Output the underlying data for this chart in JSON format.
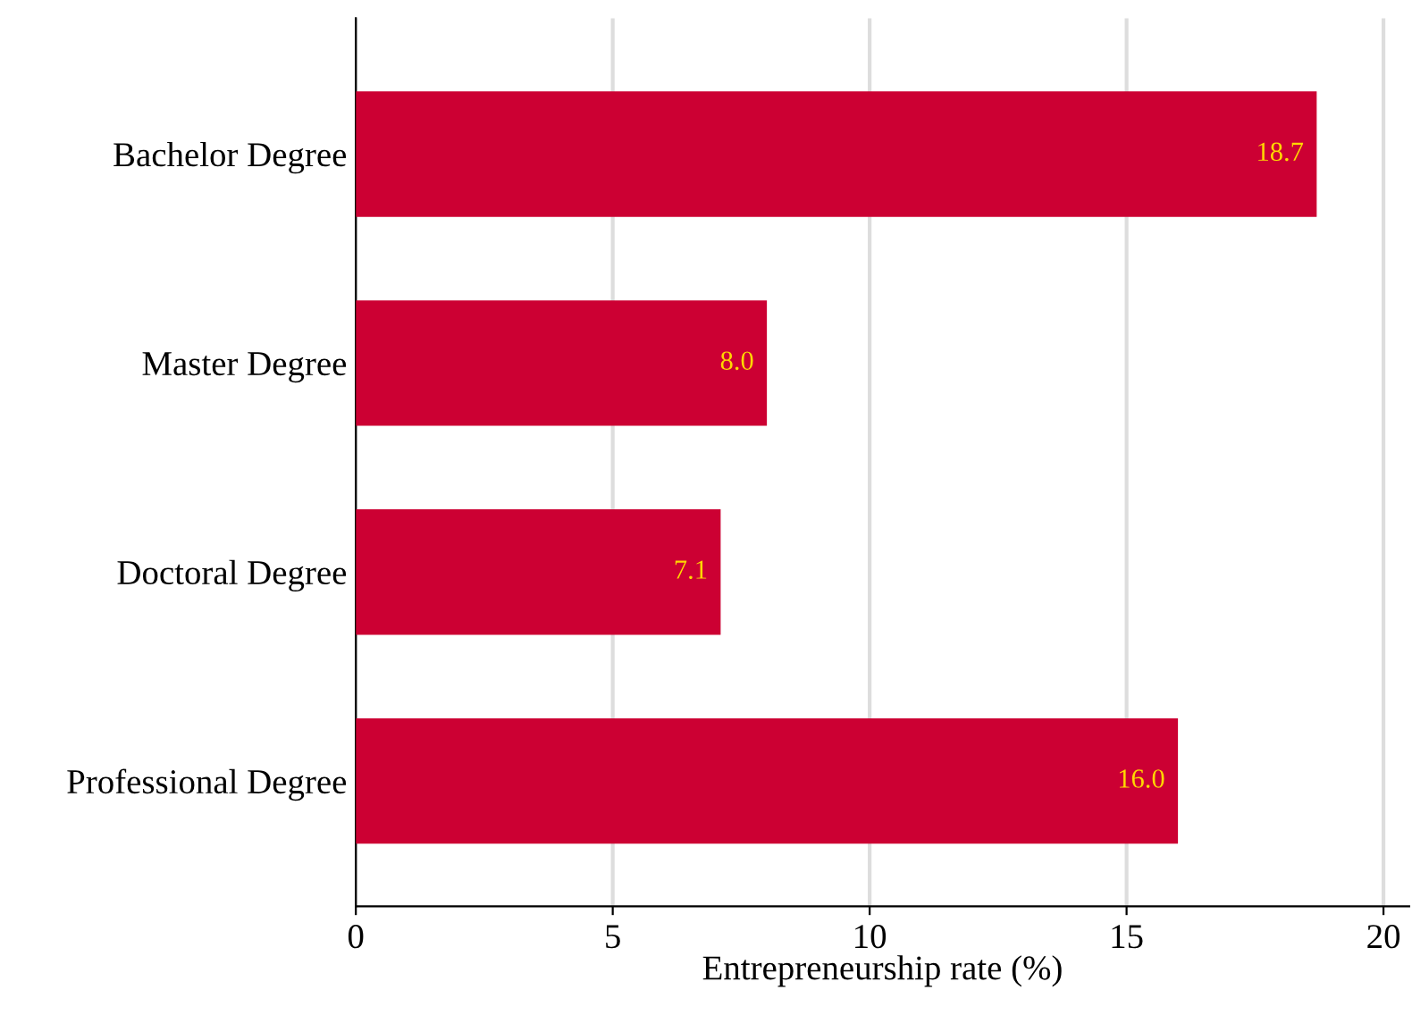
{
  "chart_data": {
    "type": "bar",
    "orientation": "horizontal",
    "xlabel": "Entrepreneurship rate (%)",
    "categories": [
      "Bachelor Degree",
      "Master Degree",
      "Doctoral Degree",
      "Professional Degree"
    ],
    "values": [
      18.7,
      8.0,
      7.1,
      16.0
    ],
    "value_labels": [
      "18.7",
      "8.0",
      "7.1",
      "16.0"
    ],
    "color": "#cc0033",
    "xlim": [
      0,
      20.5
    ],
    "xticks": [
      0,
      5,
      10,
      15,
      20
    ],
    "grid": "x",
    "legend": false
  }
}
